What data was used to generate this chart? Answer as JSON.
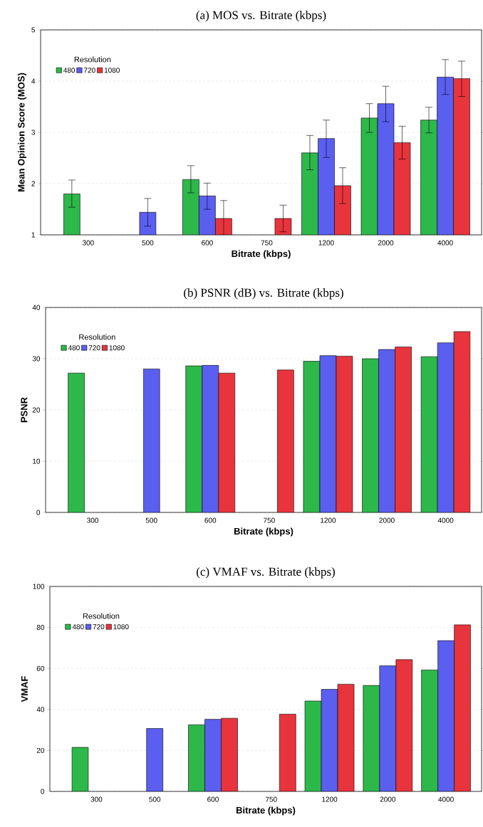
{
  "chart_data": [
    {
      "type": "bar",
      "title": "(a) MOS vs. Bitrate (kbps)",
      "xlabel": "Bitrate (kbps)",
      "ylabel": "Mean Opinion Score (MOS)",
      "legend_title": "Resolution",
      "legend": "top left",
      "grid": "y",
      "categories": [
        "300",
        "500",
        "600",
        "750",
        "1200",
        "2000",
        "4000"
      ],
      "ylim": [
        1,
        5
      ],
      "yticks": [
        1,
        2,
        3,
        4,
        5
      ],
      "series": [
        {
          "name": "480",
          "color": "#2db84a",
          "values": [
            1.8,
            null,
            2.08,
            null,
            2.6,
            3.28,
            3.24
          ],
          "errors": [
            [
              1.54,
              2.07
            ],
            null,
            [
              1.82,
              2.35
            ],
            null,
            [
              2.27,
              2.94
            ],
            [
              3.0,
              3.56
            ],
            [
              2.99,
              3.49
            ]
          ]
        },
        {
          "name": "720",
          "color": "#5a5ff0",
          "values": [
            null,
            1.44,
            1.76,
            null,
            2.88,
            3.56,
            4.08
          ],
          "errors": [
            null,
            [
              1.17,
              1.71
            ],
            [
              1.5,
              2.01
            ],
            null,
            [
              2.51,
              3.24
            ],
            [
              3.21,
              3.9
            ],
            [
              3.74,
              4.42
            ]
          ]
        },
        {
          "name": "1080",
          "color": "#e8343c",
          "values": [
            null,
            null,
            1.32,
            1.32,
            1.96,
            2.8,
            4.05
          ],
          "errors": [
            null,
            null,
            [
              1.0,
              1.67
            ],
            [
              1.06,
              1.58
            ],
            [
              1.61,
              2.31
            ],
            [
              2.48,
              3.12
            ],
            [
              3.7,
              4.39
            ]
          ]
        }
      ]
    },
    {
      "type": "bar",
      "title": "(b) PSNR (dB) vs. Bitrate (kbps)",
      "xlabel": "Bitrate (kbps)",
      "ylabel": "PSNR",
      "legend_title": "Resolution",
      "legend": "top left",
      "grid": "y",
      "categories": [
        "300",
        "500",
        "600",
        "750",
        "1200",
        "2000",
        "4000"
      ],
      "ylim": [
        0,
        40
      ],
      "yticks": [
        0,
        10,
        20,
        30,
        40
      ],
      "series": [
        {
          "name": "480",
          "color": "#2db84a",
          "values": [
            27.2,
            null,
            28.6,
            null,
            29.5,
            30.0,
            30.4
          ]
        },
        {
          "name": "720",
          "color": "#5a5ff0",
          "values": [
            null,
            28.0,
            28.7,
            null,
            30.6,
            31.8,
            33.1
          ]
        },
        {
          "name": "1080",
          "color": "#e8343c",
          "values": [
            null,
            null,
            27.2,
            27.8,
            30.5,
            32.3,
            35.3
          ]
        }
      ]
    },
    {
      "type": "bar",
      "title": "(c) VMAF vs. Bitrate (kbps)",
      "xlabel": "Bitrate (kbps)",
      "ylabel": "VMAF",
      "legend_title": "Resolution",
      "legend": "top left",
      "grid": "y",
      "categories": [
        "300",
        "500",
        "600",
        "750",
        "1200",
        "2000",
        "4000"
      ],
      "ylim": [
        0,
        100
      ],
      "yticks": [
        0,
        20,
        40,
        60,
        80,
        100
      ],
      "series": [
        {
          "name": "480",
          "color": "#2db84a",
          "values": [
            21.5,
            null,
            32.5,
            null,
            44.1,
            51.7,
            59.3
          ]
        },
        {
          "name": "720",
          "color": "#5a5ff0",
          "values": [
            null,
            30.7,
            35.2,
            null,
            49.8,
            61.3,
            73.6
          ]
        },
        {
          "name": "1080",
          "color": "#e8343c",
          "values": [
            null,
            null,
            35.7,
            37.7,
            52.3,
            64.3,
            81.3
          ]
        }
      ]
    }
  ]
}
